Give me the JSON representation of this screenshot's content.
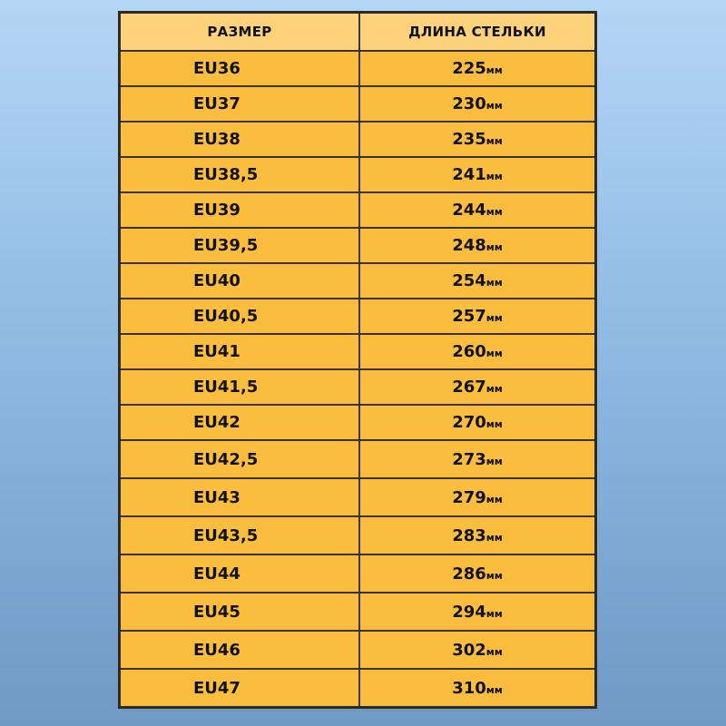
{
  "table": {
    "headers": [
      "РАЗМЕР",
      "ДЛИНА СТЕЛЬКИ"
    ],
    "unit": "мм",
    "rows": [
      {
        "size": "EU36",
        "length": "225"
      },
      {
        "size": "EU37",
        "length": "230"
      },
      {
        "size": "EU38",
        "length": "235"
      },
      {
        "size": "EU38,5",
        "length": "241"
      },
      {
        "size": "EU39",
        "length": "244"
      },
      {
        "size": "EU39,5",
        "length": "248"
      },
      {
        "size": "EU40",
        "length": "254"
      },
      {
        "size": "EU40,5",
        "length": "257"
      },
      {
        "size": "EU41",
        "length": "260"
      },
      {
        "size": "EU41,5",
        "length": "267"
      },
      {
        "size": "EU42",
        "length": "270"
      },
      {
        "size": "EU42,5",
        "length": "273"
      },
      {
        "size": "EU43",
        "length": "279"
      },
      {
        "size": "EU43,5",
        "length": "283"
      },
      {
        "size": "EU44",
        "length": "286"
      },
      {
        "size": "EU45",
        "length": "294"
      },
      {
        "size": "EU46",
        "length": "302"
      },
      {
        "size": "EU47",
        "length": "310"
      }
    ]
  },
  "colors": {
    "header": "#fdd27a",
    "row": "#fbbd3d",
    "border": "#2b2a27"
  }
}
